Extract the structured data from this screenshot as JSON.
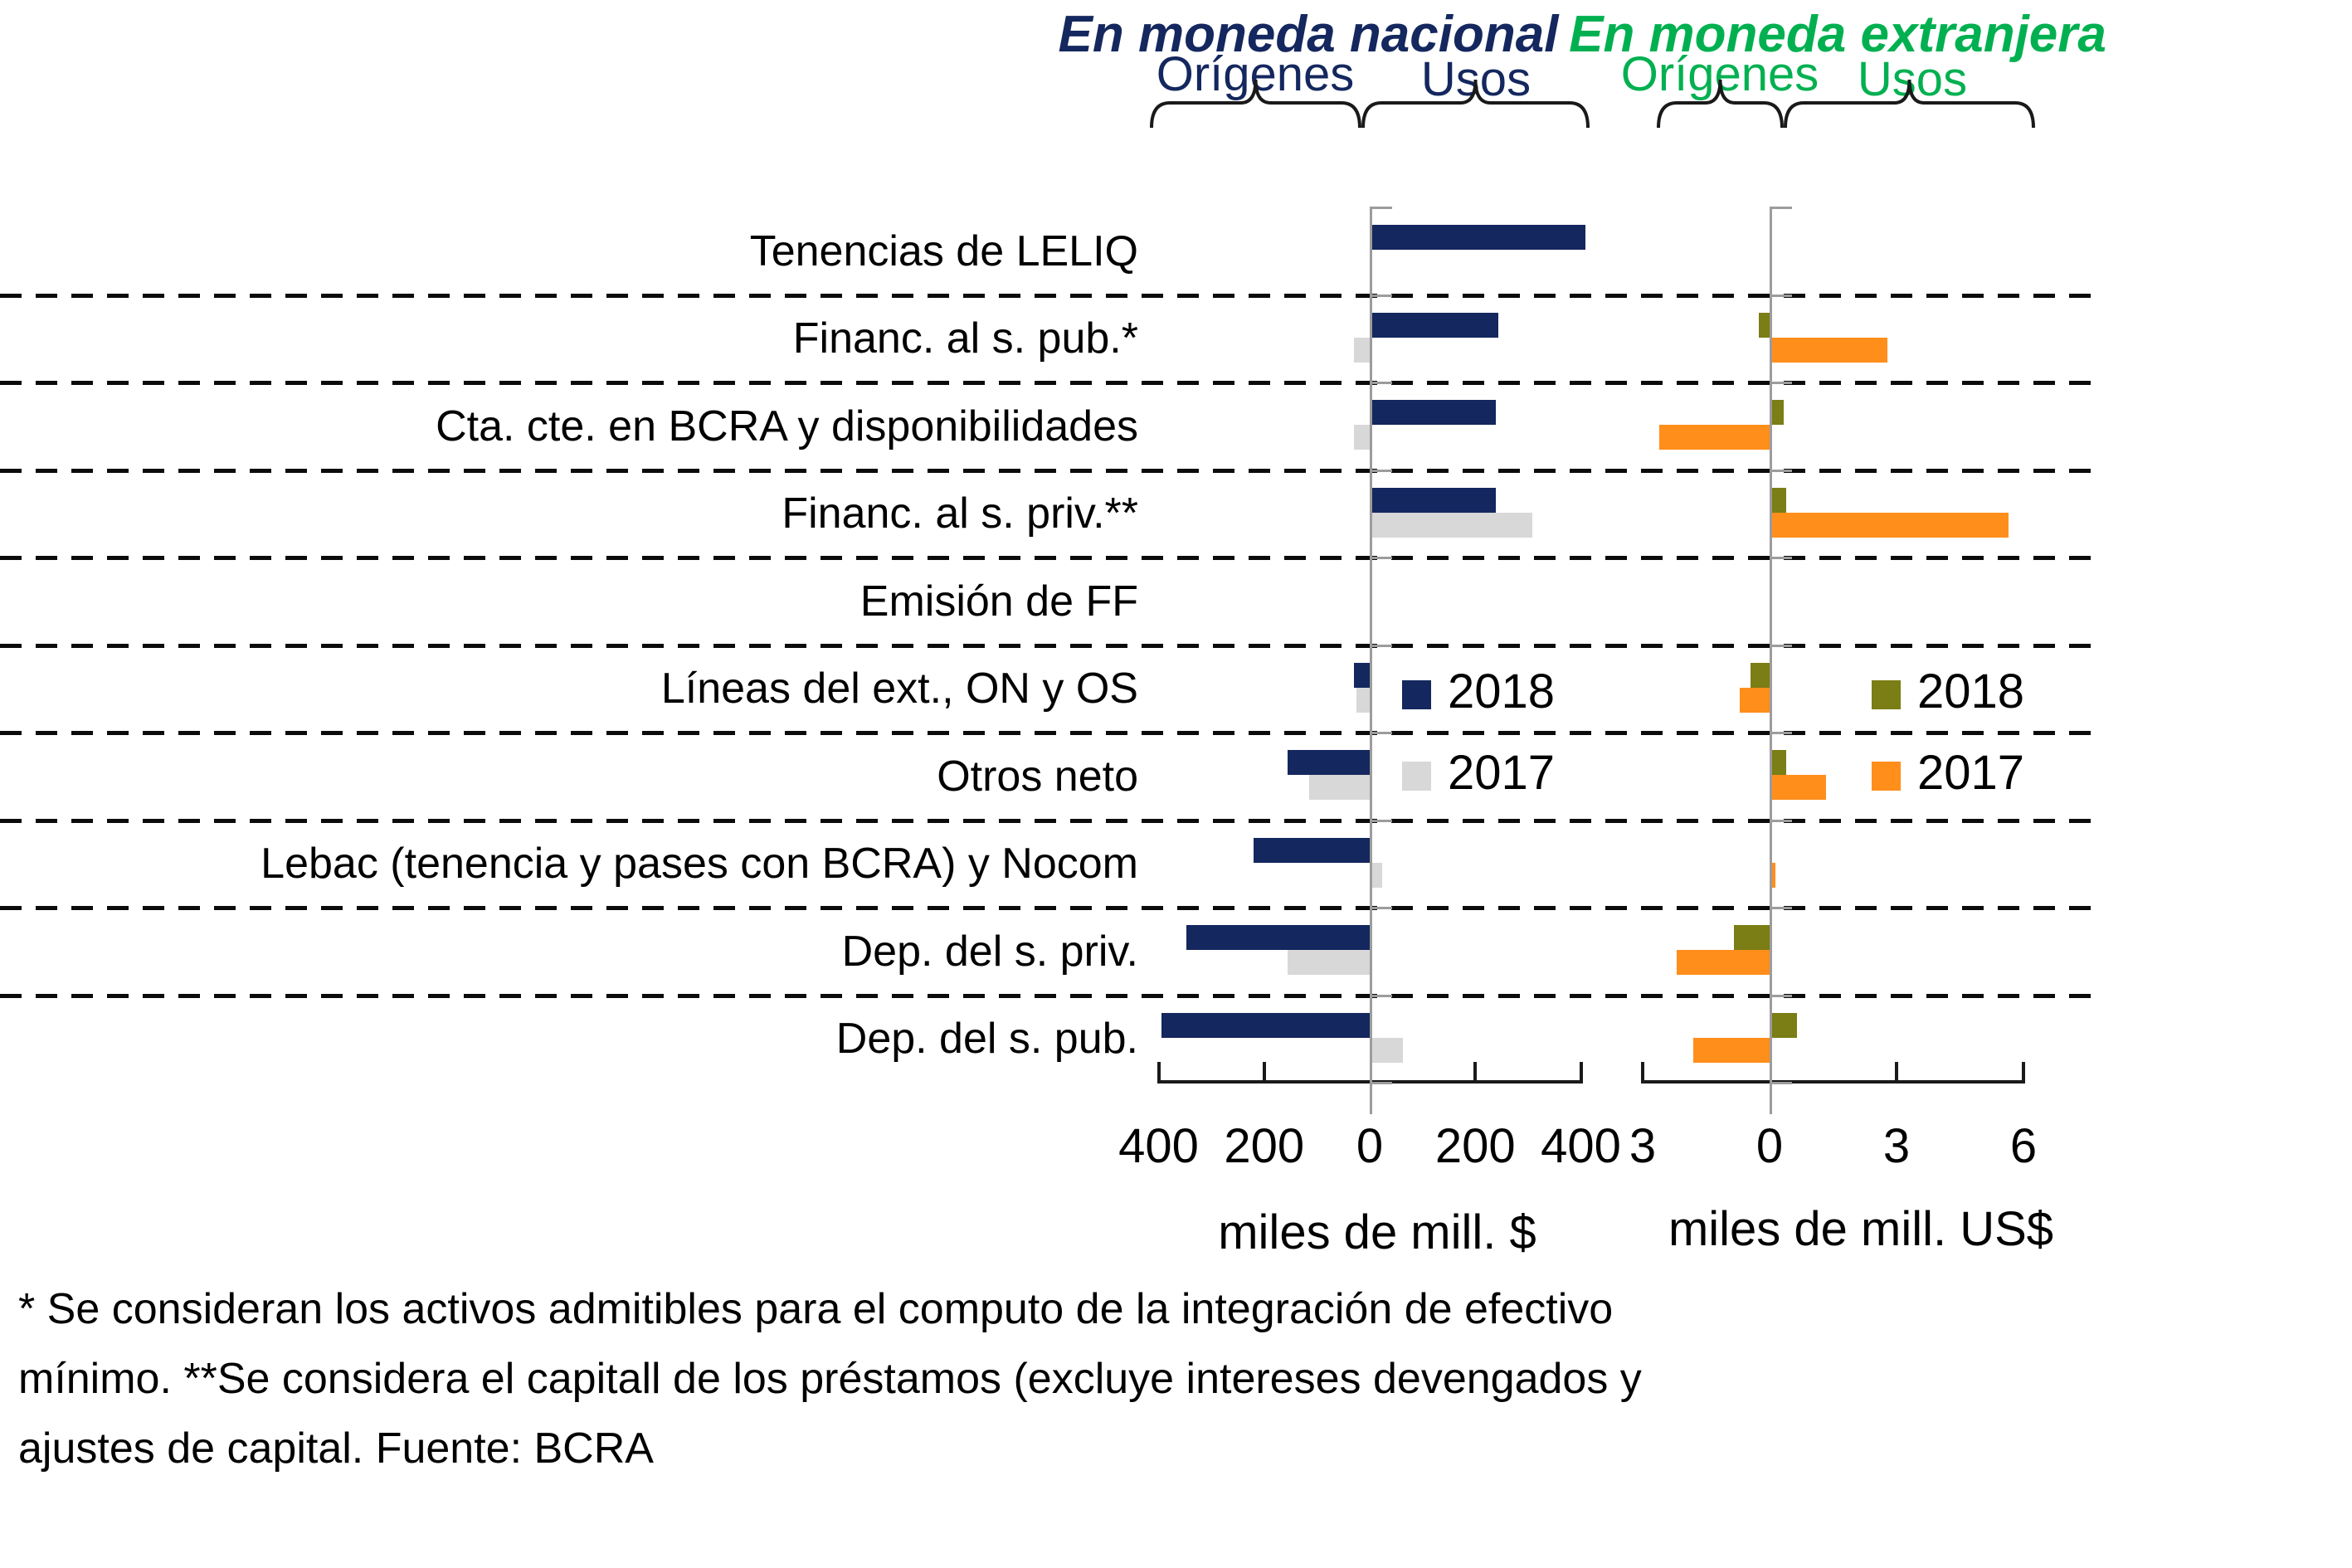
{
  "titles": {
    "national": "En moneda nacional",
    "foreign": "En moneda extranjera"
  },
  "group_headers": {
    "national_origins": "Orígenes",
    "national_uses": "Usos",
    "foreign_origins": "Orígenes",
    "foreign_uses": "Usos"
  },
  "legend": {
    "label_2018": "2018",
    "label_2017": "2017"
  },
  "axis_captions": {
    "pesos": "miles de mill. $",
    "usd": "miles de mill. US$"
  },
  "footnote": {
    "line1": "* Se consideran los activos admitibles para el computo de la integración de efectivo",
    "line2": "mínimo. **Se considera el capitall de los préstamos (excluye intereses devengados y",
    "line3": "ajustes de capital. Fuente: BCRA"
  },
  "colors": {
    "navy": "#14275E",
    "gray": "#D8D8D8",
    "olive": "#7B7D15",
    "orange": "#FF8E1B",
    "green": "#00B050",
    "axis_gray": "#9C9C9C"
  },
  "chart_data": [
    {
      "type": "bar",
      "orientation": "horizontal",
      "group": "En moneda nacional",
      "unit_label": "miles de mill. $",
      "value_convention": "negative = Orígenes (left of zero), positive = Usos (right of zero)",
      "axis_ticks": [
        -400,
        -200,
        0,
        200,
        400
      ],
      "axis_tick_labels": [
        "400",
        "200",
        "0",
        "200",
        "400"
      ],
      "xlim": [
        -430,
        430
      ],
      "categories": [
        "Tenencias de LELIQ",
        "Financ. al s. pub.*",
        "Cta. cte. en BCRA y disponibilidades",
        "Financ. al s. priv.**",
        "Emisión de FF",
        "Líneas del ext., ON y OS",
        "Otros neto",
        "Lebac (tenencia y pases con BCRA) y Nocom",
        "Dep. del s. priv.",
        "Dep. del s. pub."
      ],
      "series": [
        {
          "name": "2018",
          "color_key": "navy",
          "values": [
            405,
            240,
            235,
            235,
            0,
            -30,
            -155,
            -220,
            -348,
            -395
          ]
        },
        {
          "name": "2017",
          "color_key": "gray",
          "values": [
            0,
            -30,
            -30,
            305,
            0,
            -25,
            -115,
            20,
            -155,
            60
          ]
        }
      ]
    },
    {
      "type": "bar",
      "orientation": "horizontal",
      "group": "En moneda extranjera",
      "unit_label": "miles de mill. US$",
      "value_convention": "negative = Orígenes (left of zero), positive = Usos (right of zero)",
      "axis_ticks": [
        -3,
        0,
        3,
        6
      ],
      "axis_tick_labels": [
        "3",
        "0",
        "3",
        "6"
      ],
      "xlim": [
        -3.5,
        6.5
      ],
      "categories": [
        "Tenencias de LELIQ",
        "Financ. al s. pub.*",
        "Cta. cte. en BCRA y disponibilidades",
        "Financ. al s. priv.**",
        "Emisión de FF",
        "Líneas del ext., ON y OS",
        "Otros neto",
        "Lebac (tenencia y pases con BCRA) y Nocom",
        "Dep. del s. priv.",
        "Dep. del s. pub."
      ],
      "series": [
        {
          "name": "2018",
          "color_key": "olive",
          "values": [
            0,
            -0.25,
            0.3,
            0.35,
            0,
            -0.45,
            0.35,
            0,
            -0.85,
            0.6
          ]
        },
        {
          "name": "2017",
          "color_key": "orange",
          "values": [
            0,
            2.75,
            -2.6,
            5.6,
            0,
            -0.7,
            1.3,
            0.1,
            -2.2,
            -1.8
          ]
        }
      ]
    }
  ]
}
